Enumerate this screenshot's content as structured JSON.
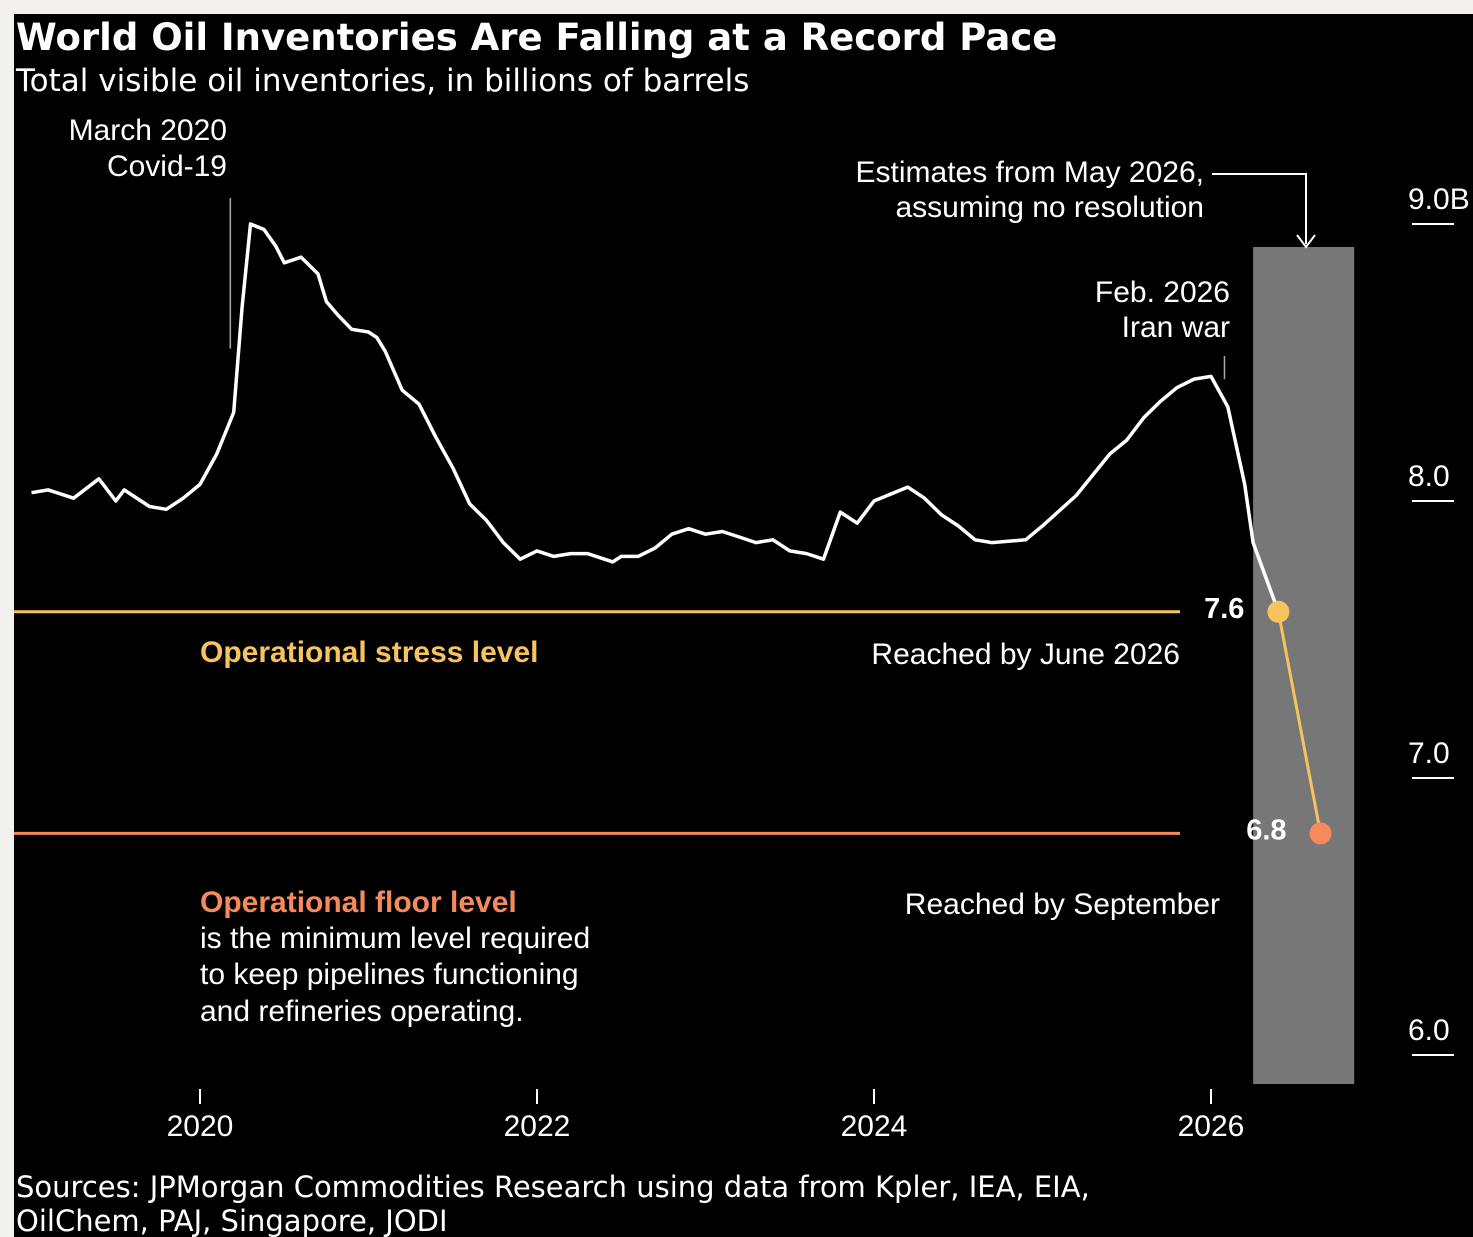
{
  "colors": {
    "background": "#000000",
    "line": "#ffffff",
    "stress": "#f6c35e",
    "floor": "#f68a5c",
    "estimate_band": "#777777"
  },
  "chart_data": {
    "type": "line",
    "title": "World Oil Inventories Are Falling at a Record Pace",
    "subtitle": "Total visible oil inventories, in billions of barrels",
    "ylim": [
      6.0,
      9.0
    ],
    "y_ticks": [
      "6.0",
      "7.0",
      "8.0",
      "9.0B"
    ],
    "x_ticks": [
      "2020",
      "2022",
      "2024",
      "2026"
    ],
    "grid": false,
    "series": [
      {
        "x": [
          2019.0,
          2019.1,
          2019.25,
          2019.4,
          2019.5,
          2019.55,
          2019.7,
          2019.8,
          2019.9,
          2020.0,
          2020.1,
          2020.2,
          2020.25,
          2020.3,
          2020.38,
          2020.45,
          2020.5,
          2020.6,
          2020.7,
          2020.75,
          2020.82,
          2020.9,
          2021.0,
          2021.05,
          2021.1,
          2021.2,
          2021.3,
          2021.4,
          2021.5,
          2021.6,
          2021.7,
          2021.8,
          2021.9,
          2022.0,
          2022.1,
          2022.2,
          2022.3,
          2022.45,
          2022.5,
          2022.6,
          2022.7,
          2022.8,
          2022.9,
          2023.0,
          2023.1,
          2023.2,
          2023.3,
          2023.4,
          2023.5,
          2023.6,
          2023.7,
          2023.8,
          2023.9,
          2024.0,
          2024.2,
          2024.3,
          2024.4,
          2024.5,
          2024.6,
          2024.7,
          2024.9,
          2025.0,
          2025.2,
          2025.4,
          2025.5,
          2025.6,
          2025.7,
          2025.8,
          2025.9,
          2026.0,
          2026.1,
          2026.2,
          2026.25,
          2026.4
        ],
        "y": [
          8.03,
          8.04,
          8.01,
          8.08,
          8.0,
          8.04,
          7.98,
          7.97,
          8.01,
          8.06,
          8.17,
          8.32,
          8.7,
          9.0,
          8.98,
          8.92,
          8.86,
          8.88,
          8.82,
          8.72,
          8.67,
          8.62,
          8.61,
          8.59,
          8.54,
          8.4,
          8.35,
          8.23,
          8.12,
          7.99,
          7.93,
          7.85,
          7.79,
          7.82,
          7.8,
          7.81,
          7.81,
          7.78,
          7.8,
          7.8,
          7.83,
          7.88,
          7.9,
          7.88,
          7.89,
          7.87,
          7.85,
          7.86,
          7.82,
          7.81,
          7.79,
          7.96,
          7.92,
          8.0,
          8.05,
          8.01,
          7.95,
          7.91,
          7.86,
          7.85,
          7.86,
          7.91,
          8.02,
          8.17,
          8.22,
          8.3,
          8.36,
          8.41,
          8.44,
          8.45,
          8.34,
          8.06,
          7.85,
          7.6
        ]
      },
      {
        "x": [
          2026.4,
          2026.65
        ],
        "y": [
          7.6,
          6.8
        ],
        "points": [
          "7.6",
          "6.8"
        ]
      }
    ],
    "reference_lines": [
      {
        "label": "Operational stress level",
        "value": 7.6,
        "note": "Reached by June 2026"
      },
      {
        "label": "Operational floor level",
        "value": 6.8,
        "note": "Reached by September",
        "description": [
          "is the minimum level required",
          "to keep pipelines functioning",
          "and refineries operating."
        ]
      }
    ],
    "annotations": {
      "covid": [
        "March 2020",
        "Covid-19"
      ],
      "iran": [
        "Feb. 2026",
        "Iran war"
      ],
      "estimate": [
        "Estimates from May 2026,",
        "assuming no resolution"
      ]
    },
    "estimate_region": [
      2026.25,
      2026.85
    ],
    "source": [
      "Sources: JPMorgan Commodities Research using data from Kpler, IEA, EIA,",
      "OilChem, PAJ, Singapore, JODI"
    ]
  }
}
